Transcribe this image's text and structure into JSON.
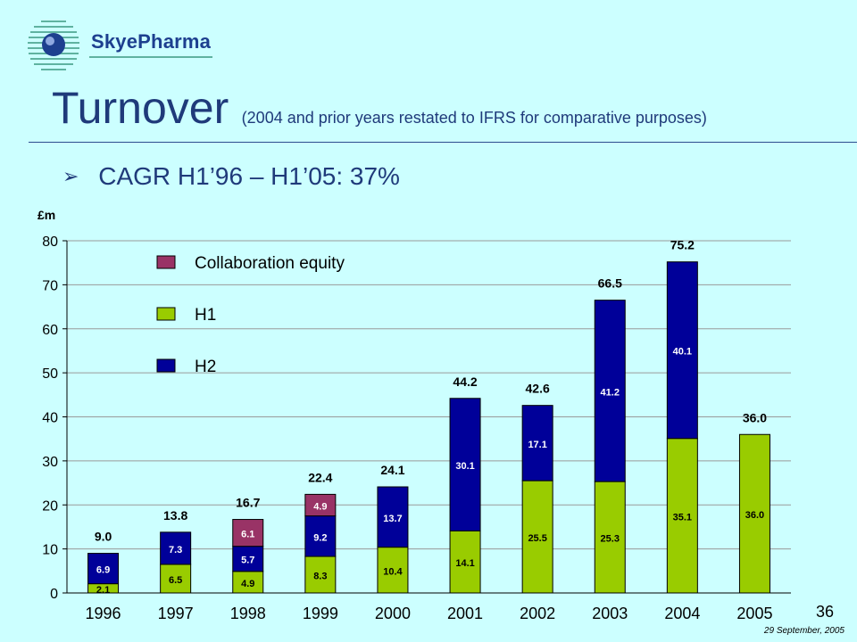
{
  "logo": {
    "text": "SkyePharma"
  },
  "title": "Turnover",
  "subtitle": "(2004 and prior years restated to IFRS for comparative purposes)",
  "bullet": "CAGR H1’96 – H1’05: 37%",
  "page_number": "36",
  "date": "29 September, 2005",
  "colors": {
    "background": "#ccffff",
    "h1": "#99cc00",
    "h2": "#000099",
    "collab": "#993366",
    "title": "#1f3a7a"
  },
  "chart_data": {
    "type": "bar",
    "stacked": true,
    "ylabel": "£m",
    "ylim": [
      0,
      80
    ],
    "yticks": [
      0,
      10,
      20,
      30,
      40,
      50,
      60,
      70,
      80
    ],
    "categories": [
      "1996",
      "1997",
      "1998",
      "1999",
      "2000",
      "2001",
      "2002",
      "2003",
      "2004",
      "2005"
    ],
    "series": [
      {
        "name": "H1",
        "color": "#99cc00",
        "values": [
          2.1,
          6.5,
          4.9,
          8.3,
          10.4,
          14.1,
          25.5,
          25.3,
          35.1,
          36.0
        ],
        "labels": [
          "2.1",
          "6.5",
          "4.9",
          "8.3",
          "10.4",
          "14.1",
          "25.5",
          "25.3",
          "35.1",
          "36.0"
        ]
      },
      {
        "name": "H2",
        "color": "#000099",
        "values": [
          6.9,
          7.3,
          5.7,
          9.2,
          13.7,
          30.1,
          17.1,
          41.2,
          40.1,
          0
        ],
        "labels": [
          "6.9",
          "7.3",
          "5.7",
          "9.2",
          "13.7",
          "30.1",
          "17.1",
          "41.2",
          "40.1",
          ""
        ]
      },
      {
        "name": "Collaboration equity",
        "color": "#993366",
        "values": [
          0,
          0,
          6.1,
          4.9,
          0,
          0,
          0,
          0,
          0,
          0
        ],
        "labels": [
          "",
          "",
          "6.1",
          "4.9",
          "",
          "",
          "",
          "",
          "",
          ""
        ]
      }
    ],
    "totals": [
      "9.0",
      "13.8",
      "16.7",
      "22.4",
      "24.1",
      "44.2",
      "42.6",
      "66.5",
      "75.2",
      "36.0"
    ],
    "legend": [
      "Collaboration equity",
      "H1",
      "H2"
    ],
    "grid": true
  }
}
